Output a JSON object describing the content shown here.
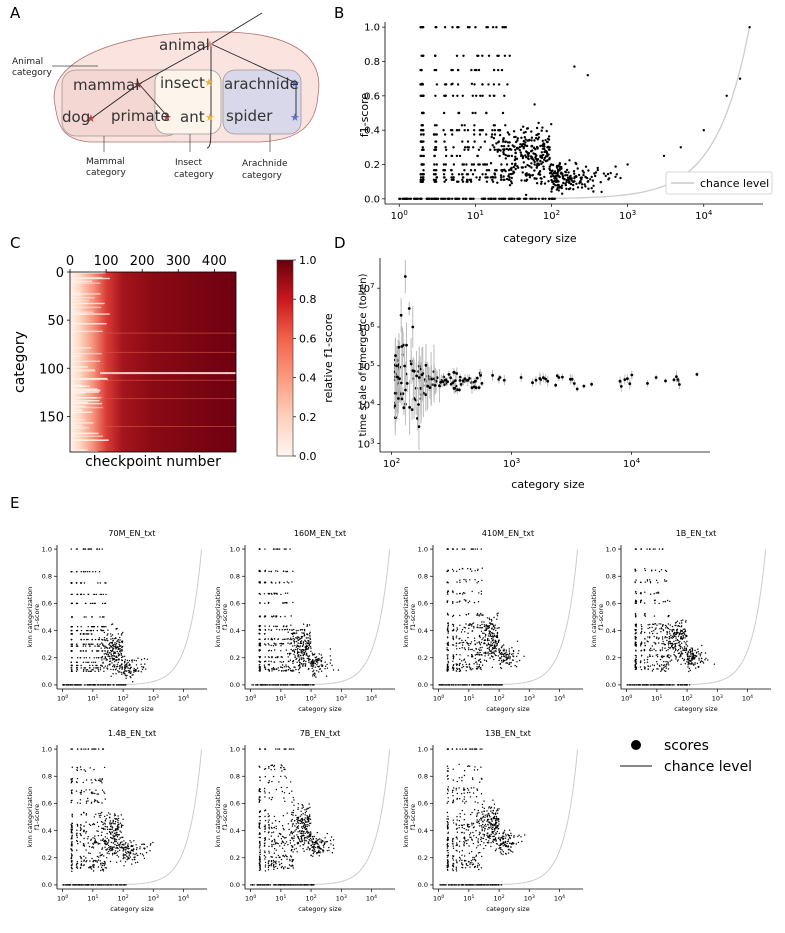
{
  "panels": {
    "A": {
      "letter": "A",
      "nodes": {
        "animal": "animal",
        "mammal": "mammal",
        "insect": "insect",
        "arachnide": "arachnide",
        "dog": "dog",
        "primate": "primate",
        "ant": "ant",
        "spider": "spider"
      },
      "annotations": {
        "animal_category": [
          "Animal",
          "category"
        ],
        "mammal_category": [
          "Mammal",
          "category"
        ],
        "insect_category": [
          "Insect",
          "category"
        ],
        "arachnide_category": [
          "Arachnide",
          "category"
        ]
      },
      "colors": {
        "root": "#fbe3df",
        "mammal_box": "#f4dcd8",
        "insect_box": "#fdf3e8",
        "arachnide_box": "#d7d7ea",
        "mammal_star": "#b04848",
        "insect_star": "#e8b840",
        "arachnide_star": "#6070c8",
        "animal_star": "#d89090"
      }
    },
    "B": {
      "letter": "B",
      "xlabel": "category size",
      "ylabel": "f1-score",
      "legend": "chance level",
      "xticks": [
        "10^0",
        "10^1",
        "10^2",
        "10^3",
        "10^4"
      ],
      "yticks": [
        "0.0",
        "0.2",
        "0.4",
        "0.6",
        "0.8",
        "1.0"
      ]
    },
    "C": {
      "letter": "C",
      "xlabel": "checkpoint number",
      "ylabel": "category",
      "xticks": [
        "0",
        "100",
        "200",
        "300",
        "400"
      ],
      "yticks": [
        "0",
        "50",
        "100",
        "150"
      ],
      "colorbar_label": "relative f1-score",
      "colorbar_ticks": [
        "0.0",
        "0.2",
        "0.4",
        "0.6",
        "0.8",
        "1.0"
      ]
    },
    "D": {
      "letter": "D",
      "xlabel": "category size",
      "ylabel": "time scale of emergence (token)",
      "xticks": [
        "10^2",
        "10^3",
        "10^4"
      ],
      "yticks": [
        "10^3",
        "10^4",
        "10^5",
        "10^6",
        "10^7"
      ]
    },
    "E": {
      "letter": "E",
      "xlabel": "category size",
      "ylabel": [
        "knn categorization",
        "f1-score"
      ],
      "legend_scores": "scores",
      "legend_chance": "chance level",
      "xticks": [
        "10^0",
        "10^1",
        "10^2",
        "10^3",
        "10^4"
      ],
      "yticks": [
        "0.0",
        "0.2",
        "0.4",
        "0.6",
        "0.8",
        "1.0"
      ]
    }
  },
  "chart_data": [
    {
      "panel": "B",
      "type": "scatter",
      "xlabel": "category size",
      "ylabel": "f1-score",
      "x_scale": "log",
      "xlim": [
        0.65,
        60000
      ],
      "ylim": [
        -0.03,
        1.03
      ],
      "grid": false,
      "legend_placement": "lower-right",
      "series": [
        {
          "name": "chance level",
          "type": "line",
          "x": [
            1,
            10,
            100,
            1000,
            5000,
            10000,
            20000,
            30000,
            40000
          ],
          "y": [
            0.0,
            0.0,
            0.003,
            0.025,
            0.12,
            0.25,
            0.5,
            0.75,
            1.0
          ]
        }
      ],
      "points_sample": [
        [
          2,
          1.0
        ],
        [
          3,
          1.0
        ],
        [
          4,
          1.0
        ],
        [
          6,
          1.0
        ],
        [
          8,
          1.0
        ],
        [
          14,
          1.0
        ],
        [
          2,
          0.67
        ],
        [
          5,
          0.67
        ],
        [
          9,
          0.67
        ],
        [
          2,
          0.5
        ],
        [
          6,
          0.5
        ],
        [
          10,
          0.5
        ],
        [
          8,
          0.4
        ],
        [
          12,
          0.4
        ],
        [
          20,
          0.33
        ],
        [
          40,
          0.25
        ],
        [
          60,
          0.2
        ],
        [
          100,
          0.15
        ],
        [
          200,
          0.12
        ],
        [
          300,
          0.1
        ],
        [
          600,
          0.15
        ],
        [
          1000,
          0.2
        ],
        [
          3000,
          0.25
        ],
        [
          5000,
          0.3
        ],
        [
          10000,
          0.4
        ],
        [
          20000,
          0.6
        ],
        [
          30000,
          0.7
        ],
        [
          40000,
          1.0
        ],
        [
          200,
          0.77
        ],
        [
          300,
          0.72
        ],
        [
          60,
          0.55
        ]
      ]
    },
    {
      "panel": "C",
      "type": "heatmap",
      "xlabel": "checkpoint number",
      "ylabel": "category",
      "x_range": [
        0,
        460
      ],
      "y_range": [
        0,
        187
      ],
      "colorbar_range": [
        0.0,
        1.0
      ],
      "description_values": "relative f1-score rises from ~0 at checkpoint 0 to ~1.0 after ~100 checkpoints"
    },
    {
      "panel": "D",
      "type": "scatter",
      "xlabel": "category size",
      "ylabel": "time scale of emergence (token)",
      "x_scale": "log",
      "y_scale": "log",
      "xlim": [
        80,
        45000
      ],
      "ylim": [
        600,
        60000000
      ],
      "points_sample": [
        [
          110,
          100000
        ],
        [
          115,
          300000
        ],
        [
          120,
          2000000
        ],
        [
          130,
          20000000
        ],
        [
          140,
          3000000
        ],
        [
          150,
          1000000
        ],
        [
          170,
          50000
        ],
        [
          200,
          30000
        ],
        [
          300,
          60000
        ],
        [
          500,
          40000
        ],
        [
          800,
          50000
        ],
        [
          1200,
          50000
        ],
        [
          2000,
          40000
        ],
        [
          4000,
          30000
        ],
        [
          8000,
          40000
        ],
        [
          16000,
          50000
        ],
        [
          35000,
          60000
        ]
      ]
    },
    {
      "panel": "E",
      "type": "scatter",
      "subplots": [
        "70M_EN_txt",
        "160M_EN_txt",
        "410M_EN_txt",
        "1B_EN_txt",
        "1.4B_EN_txt",
        "7B_EN_txt",
        "13B_EN_txt"
      ],
      "xlabel": "category size",
      "ylabel": "knn categorization f1-score",
      "x_scale": "log",
      "xlim": [
        0.65,
        60000
      ],
      "ylim": [
        -0.03,
        1.03
      ],
      "series": [
        {
          "name": "scores",
          "type": "scatter"
        },
        {
          "name": "chance level",
          "type": "line"
        }
      ]
    }
  ]
}
